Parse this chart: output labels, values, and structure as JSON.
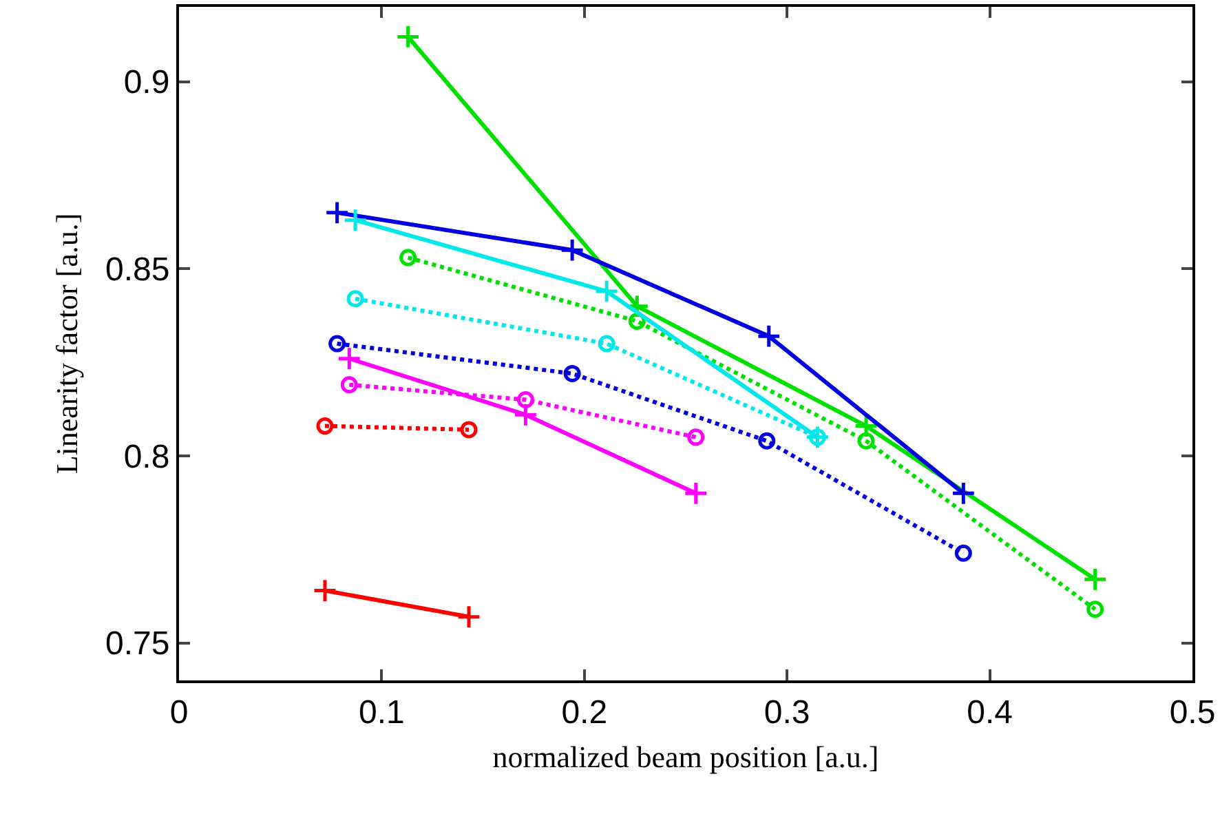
{
  "chart_data": {
    "type": "line",
    "xlabel": "normalized beam position [a.u.]",
    "ylabel": "Linearity factor [a.u.]",
    "xlim": [
      0,
      0.5
    ],
    "xticks": [
      0,
      0.1,
      0.2,
      0.3,
      0.4,
      0.5
    ],
    "ylim": [
      0.74,
      0.92
    ],
    "yticks": [
      0.75,
      0.8,
      0.85,
      0.9
    ],
    "grid": false,
    "series": [
      {
        "color": "#00e000",
        "marker": "cross",
        "line_style": "solid",
        "x": [
          0.113,
          0.226,
          0.339,
          0.452
        ],
        "values": [
          0.912,
          0.84,
          0.808,
          0.767
        ]
      },
      {
        "color": "#00e000",
        "marker": "circle",
        "line_style": "dotted",
        "x": [
          0.113,
          0.226,
          0.339,
          0.452
        ],
        "values": [
          0.853,
          0.836,
          0.804,
          0.759
        ]
      },
      {
        "color": "#0000e0",
        "marker": "cross",
        "line_style": "solid",
        "x": [
          0.078,
          0.194,
          0.291,
          0.387
        ],
        "values": [
          0.865,
          0.855,
          0.832,
          0.79
        ]
      },
      {
        "color": "#0000e0",
        "marker": "circle",
        "line_style": "dotted",
        "x": [
          0.078,
          0.194,
          0.29,
          0.387
        ],
        "values": [
          0.83,
          0.822,
          0.804,
          0.774
        ]
      },
      {
        "color": "#00e8e8",
        "marker": "cross",
        "line_style": "solid",
        "x": [
          0.087,
          0.211,
          0.315
        ],
        "values": [
          0.863,
          0.844,
          0.805
        ]
      },
      {
        "color": "#00e8e8",
        "marker": "circle",
        "line_style": "dotted",
        "x": [
          0.087,
          0.211,
          0.315
        ],
        "values": [
          0.842,
          0.83,
          0.805
        ]
      },
      {
        "color": "#ff00ff",
        "marker": "cross",
        "line_style": "solid",
        "x": [
          0.084,
          0.171,
          0.255
        ],
        "values": [
          0.826,
          0.811,
          0.79
        ]
      },
      {
        "color": "#ff00ff",
        "marker": "circle",
        "line_style": "dotted",
        "x": [
          0.084,
          0.171,
          0.255
        ],
        "values": [
          0.819,
          0.815,
          0.805
        ]
      },
      {
        "color": "#ff0000",
        "marker": "circle",
        "line_style": "dotted",
        "x": [
          0.072,
          0.143
        ],
        "values": [
          0.808,
          0.807
        ]
      },
      {
        "color": "#ff0000",
        "marker": "cross",
        "line_style": "solid",
        "x": [
          0.072,
          0.143
        ],
        "values": [
          0.764,
          0.757
        ]
      }
    ]
  }
}
